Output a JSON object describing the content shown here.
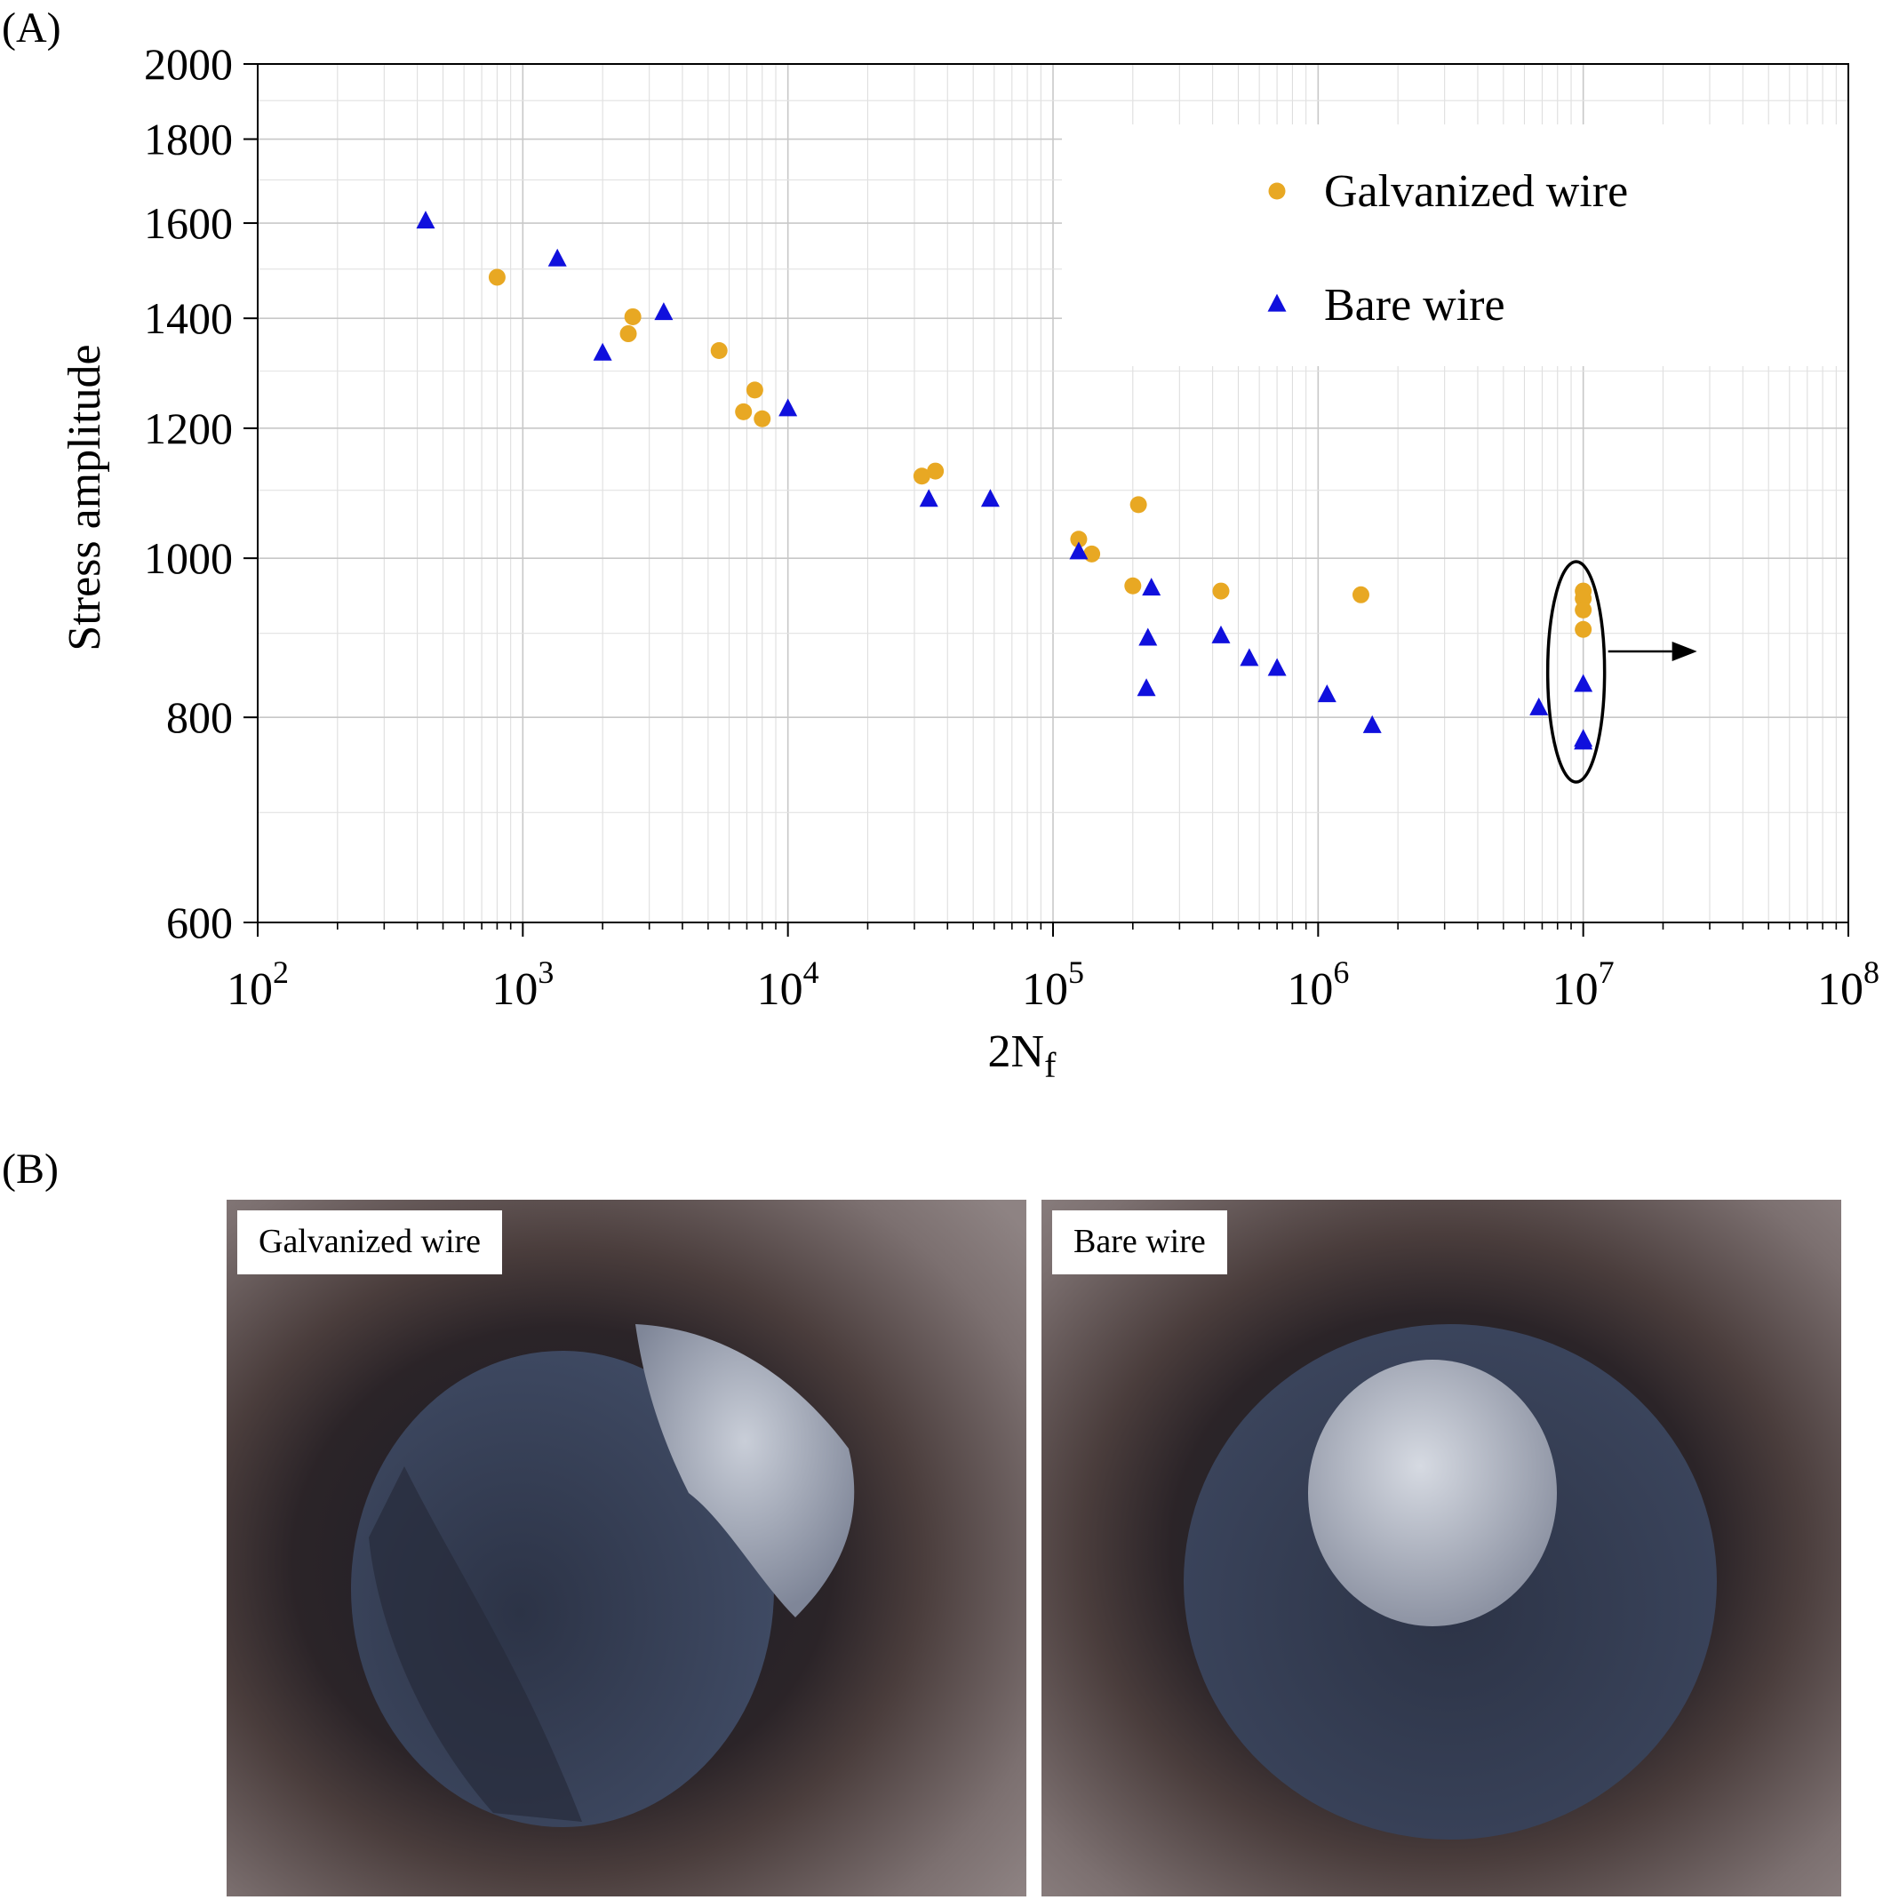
{
  "panels": {
    "a": "(A)",
    "b": "(B)"
  },
  "chart_data": {
    "type": "scatter",
    "xscale": "log",
    "yscale": "log",
    "xlim": [
      100,
      100000000
    ],
    "ylim": [
      600,
      2000
    ],
    "xticks": [
      {
        "value": 100,
        "base": "10",
        "exp": "2"
      },
      {
        "value": 1000,
        "base": "10",
        "exp": "3"
      },
      {
        "value": 10000,
        "base": "10",
        "exp": "4"
      },
      {
        "value": 100000,
        "base": "10",
        "exp": "5"
      },
      {
        "value": 1000000,
        "base": "10",
        "exp": "6"
      },
      {
        "value": 10000000,
        "base": "10",
        "exp": "7"
      },
      {
        "value": 100000000,
        "base": "10",
        "exp": "8"
      }
    ],
    "yticks": [
      600,
      800,
      1000,
      1200,
      1400,
      1600,
      1800,
      2000
    ],
    "xlabel": {
      "main": "2N",
      "sub": "f"
    },
    "ylabel": "Stress amplitude",
    "grid": true,
    "legend_position": "top-right",
    "series": [
      {
        "name": "Galvanized wire",
        "marker": "circle",
        "color": "#E8A823",
        "points": [
          [
            800,
            1483
          ],
          [
            2500,
            1370
          ],
          [
            2600,
            1403
          ],
          [
            5500,
            1338
          ],
          [
            6800,
            1228
          ],
          [
            7500,
            1266
          ],
          [
            8000,
            1216
          ],
          [
            32000,
            1122
          ],
          [
            36000,
            1130
          ],
          [
            125000,
            1027
          ],
          [
            140000,
            1006
          ],
          [
            200000,
            962
          ],
          [
            210000,
            1078
          ],
          [
            430000,
            955
          ],
          [
            1450000,
            950
          ],
          [
            10000000,
            955
          ],
          [
            10000000,
            945
          ],
          [
            10000000,
            930
          ],
          [
            10000000,
            905
          ]
        ]
      },
      {
        "name": "Bare wire",
        "marker": "triangle",
        "color": "#1010DD",
        "points": [
          [
            430,
            1603
          ],
          [
            1350,
            1520
          ],
          [
            2000,
            1332
          ],
          [
            3400,
            1410
          ],
          [
            10000,
            1232
          ],
          [
            34000,
            1085
          ],
          [
            58000,
            1085
          ],
          [
            125000,
            1008
          ],
          [
            225000,
            832
          ],
          [
            228000,
            893
          ],
          [
            235000,
            958
          ],
          [
            430000,
            896
          ],
          [
            550000,
            868
          ],
          [
            700000,
            856
          ],
          [
            1080000,
            825
          ],
          [
            1600000,
            790
          ],
          [
            6800000,
            810
          ],
          [
            10000000,
            837
          ],
          [
            10000000,
            775
          ],
          [
            10000000,
            772
          ]
        ]
      }
    ],
    "annotation": {
      "type": "ellipse-with-arrow",
      "around_x": 10000000
    }
  },
  "photos": [
    {
      "label": "Galvanized wire"
    },
    {
      "label": "Bare wire"
    }
  ]
}
